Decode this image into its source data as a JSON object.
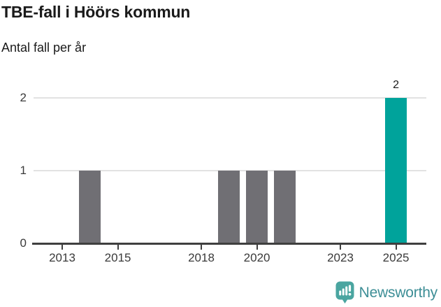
{
  "header": {
    "title": "TBE-fall i Höörs kommun",
    "subtitle": "Antal fall per år"
  },
  "chart_data": {
    "type": "bar",
    "title": "TBE-fall i Höörs kommun",
    "subtitle": "Antal fall per år",
    "x": [
      2014,
      2019,
      2020,
      2021,
      2025
    ],
    "values": [
      1,
      1,
      1,
      1,
      2
    ],
    "highlight_x": 2025,
    "value_labels": [
      {
        "x": 2025,
        "label": "2"
      }
    ],
    "xticks": [
      "2013",
      "2015",
      "2018",
      "2020",
      "2023",
      "2025"
    ],
    "yticks": [
      "0",
      "1",
      "2"
    ],
    "xlim": [
      2012,
      2026
    ],
    "ylim": [
      0,
      2
    ],
    "grid": "horizontal-only",
    "legend": "none",
    "xlabel": "",
    "ylabel": ""
  },
  "footer": {
    "brand": "Newsworthy",
    "logo_icon": "bar-chart-speech-bubble-icon"
  },
  "colors": {
    "bar_default": "#706f74",
    "bar_highlight": "#00a39b",
    "gridline": "#e2e2e2",
    "axis": "#3f3f3f",
    "axis_text": "#3a3a3a",
    "title_text": "#1a1a1a",
    "logo_icon": "#4aa5a0",
    "logo_text": "#3d8e96"
  }
}
